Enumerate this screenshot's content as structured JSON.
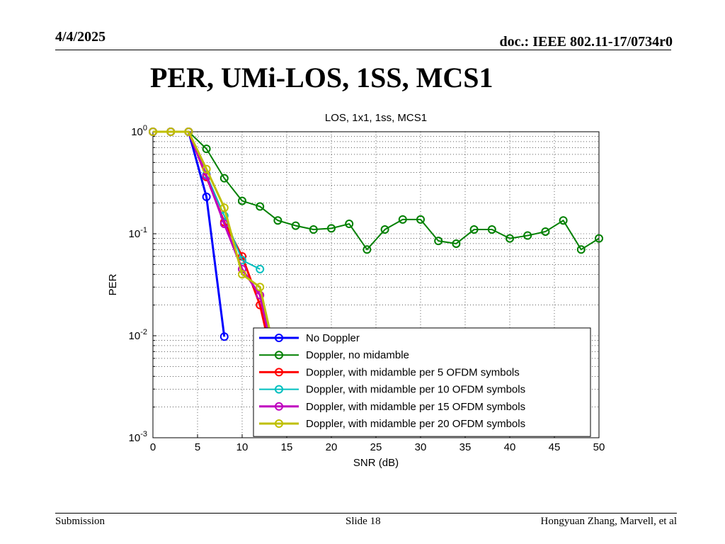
{
  "header": {
    "date": "4/4/2025",
    "doc": "doc.: IEEE 802.11-17/0734r0"
  },
  "slide": {
    "title": "PER, UMi-LOS, 1SS, MCS1"
  },
  "footer": {
    "left": "Submission",
    "center": "Slide 18",
    "right": "Hongyuan Zhang, Marvell, et al"
  },
  "chart_data": {
    "type": "line",
    "title": "LOS, 1x1, 1ss, MCS1",
    "xlabel": "SNR (dB)",
    "ylabel": "PER",
    "xlim": [
      0,
      50
    ],
    "ylim": [
      0.001,
      1
    ],
    "yscale": "log",
    "grid": true,
    "legend_position": "bottom-right",
    "xticks": [
      "0",
      "5",
      "10",
      "15",
      "20",
      "25",
      "30",
      "35",
      "40",
      "45",
      "50"
    ],
    "yticks": [
      {
        "value": 1,
        "base": "10",
        "exp": "0"
      },
      {
        "value": 0.1,
        "base": "10",
        "exp": "-1"
      },
      {
        "value": 0.01,
        "base": "10",
        "exp": "-2"
      },
      {
        "value": 0.001,
        "base": "10",
        "exp": "-3"
      }
    ],
    "series": [
      {
        "name": "No Doppler",
        "color": "#0000ff",
        "lw": 3,
        "x": [
          0,
          2,
          4,
          6,
          8
        ],
        "y": [
          1,
          1,
          1,
          0.23,
          0.0098
        ]
      },
      {
        "name": "Doppler, no midamble",
        "color": "#008000",
        "lw": 2,
        "x": [
          0,
          2,
          4,
          6,
          8,
          10,
          12,
          14,
          16,
          18,
          20,
          22,
          24,
          26,
          28,
          30,
          32,
          34,
          36,
          38,
          40,
          42,
          44,
          46,
          48,
          50
        ],
        "y": [
          1,
          1,
          1,
          0.68,
          0.35,
          0.21,
          0.185,
          0.135,
          0.12,
          0.11,
          0.113,
          0.125,
          0.07,
          0.11,
          0.138,
          0.138,
          0.085,
          0.08,
          0.11,
          0.11,
          0.09,
          0.096,
          0.105,
          0.135,
          0.07,
          0.09
        ]
      },
      {
        "name": "Doppler, with midamble per 5 OFDM symbols",
        "color": "#ff0000",
        "lw": 3,
        "x": [
          0,
          2,
          4,
          6,
          8,
          10,
          12,
          14
        ],
        "y": [
          1,
          1,
          1,
          0.36,
          0.13,
          0.06,
          0.02,
          0.0035
        ]
      },
      {
        "name": "Doppler, with midamble per 10 OFDM symbols",
        "color": "#00bfbf",
        "lw": 2,
        "x": [
          0,
          2,
          4,
          6,
          8,
          10,
          12
        ],
        "y": [
          1,
          1,
          1,
          0.38,
          0.15,
          0.055,
          0.045
        ]
      },
      {
        "name": "Doppler, with midamble per 15 OFDM symbols",
        "color": "#bf00bf",
        "lw": 3,
        "x": [
          0,
          2,
          4,
          6,
          8,
          10,
          12,
          14
        ],
        "y": [
          1,
          1,
          1,
          0.37,
          0.125,
          0.045,
          0.025,
          0.004
        ]
      },
      {
        "name": "Doppler, with midamble per 20 OFDM symbols",
        "color": "#bfbf00",
        "lw": 3,
        "x": [
          0,
          2,
          4,
          6,
          8,
          10,
          12,
          14
        ],
        "y": [
          1,
          1,
          1,
          0.43,
          0.18,
          0.04,
          0.03,
          0.005
        ]
      }
    ]
  }
}
